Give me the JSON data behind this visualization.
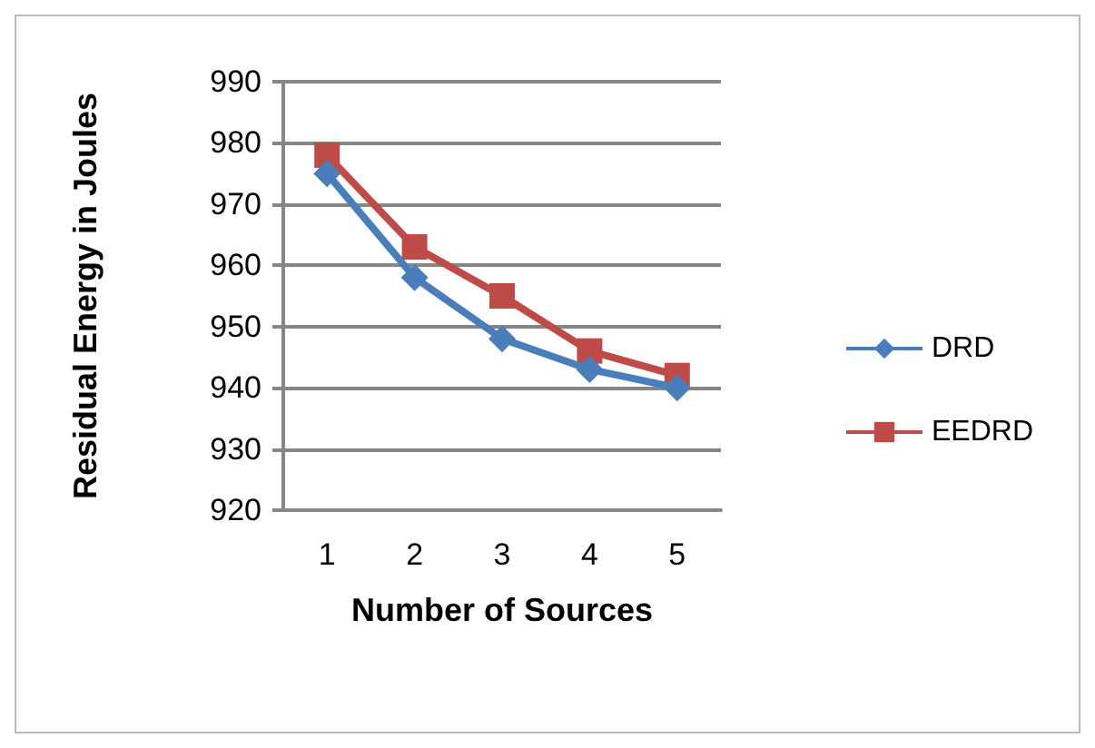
{
  "chart_data": {
    "type": "line",
    "xlabel": "Number of Sources",
    "ylabel": "Residual Energy in Joules",
    "categories": [
      "1",
      "2",
      "3",
      "4",
      "5"
    ],
    "series": [
      {
        "name": "DRD",
        "color": "#4a7ebb",
        "marker": "diamond",
        "values": [
          975,
          958,
          948,
          943,
          940
        ]
      },
      {
        "name": "EEDRD",
        "color": "#be4b48",
        "marker": "square",
        "values": [
          978,
          963,
          955,
          946,
          942
        ]
      }
    ],
    "ylim": [
      920,
      990
    ],
    "yticks": [
      920,
      930,
      940,
      950,
      960,
      970,
      980,
      990
    ],
    "grid": "y",
    "legend": "right"
  }
}
